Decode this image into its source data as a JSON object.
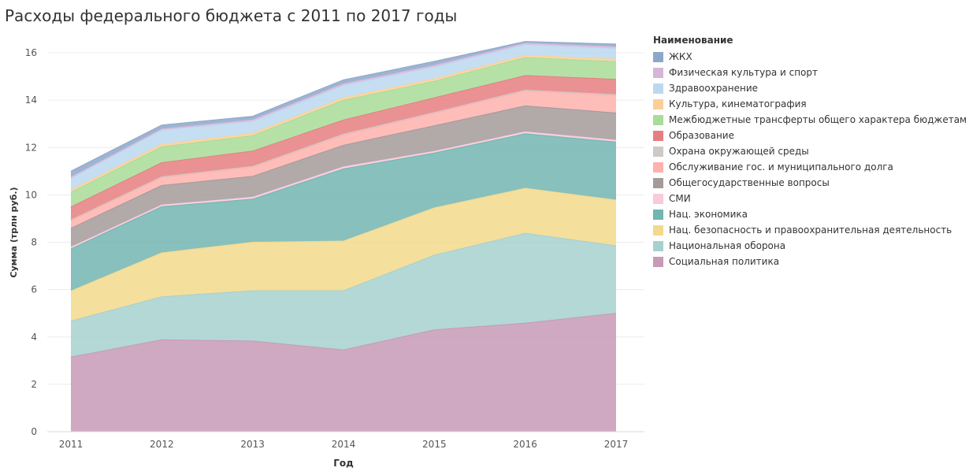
{
  "title": "Расходы федерального бюджета с 2011 по 2017 годы",
  "legend_title": "Наименование",
  "chart_data": {
    "type": "area",
    "stacked": true,
    "x": [
      "2011",
      "2012",
      "2013",
      "2014",
      "2015",
      "2016",
      "2017"
    ],
    "xlabel": "Год",
    "ylabel": "Сумма (трлн руб.)",
    "ylim": [
      0,
      16.5
    ],
    "yticks": [
      0,
      2,
      4,
      6,
      8,
      10,
      12,
      14,
      16
    ],
    "grid": true,
    "legend_position": "right",
    "series": [
      {
        "name": "Социальная политика",
        "color": "#c79ab6",
        "values": [
          3.15,
          3.88,
          3.83,
          3.45,
          4.3,
          4.58,
          5.0
        ]
      },
      {
        "name": "Национальная оборона",
        "color": "#a6d1cf",
        "values": [
          1.52,
          1.82,
          2.12,
          2.5,
          3.15,
          3.8,
          2.85
        ]
      },
      {
        "name": "Нац. безопасность и правоохранительная деятельность",
        "color": "#f2d98c",
        "values": [
          1.27,
          1.85,
          2.05,
          2.1,
          2.0,
          1.9,
          1.93
        ]
      },
      {
        "name": "Нац. экономика",
        "color": "#72b5b1",
        "values": [
          1.78,
          1.95,
          1.82,
          3.05,
          2.32,
          2.3,
          2.45
        ]
      },
      {
        "name": "СМИ",
        "color": "#f9c9dc",
        "values": [
          0.07,
          0.07,
          0.08,
          0.08,
          0.07,
          0.08,
          0.08
        ]
      },
      {
        "name": "Общегосударственные вопросы",
        "color": "#a49a9a",
        "values": [
          0.8,
          0.83,
          0.88,
          0.92,
          1.08,
          1.1,
          1.15
        ]
      },
      {
        "name": "Обслуживание гос. и муниципального долга",
        "color": "#ffb1ae",
        "values": [
          0.32,
          0.33,
          0.38,
          0.42,
          0.52,
          0.62,
          0.73
        ]
      },
      {
        "name": "Охрана окружающей среды",
        "color": "#cfc9c5",
        "values": [
          0.03,
          0.03,
          0.04,
          0.04,
          0.04,
          0.04,
          0.04
        ]
      },
      {
        "name": "Образование",
        "color": "#e67f80",
        "values": [
          0.55,
          0.6,
          0.65,
          0.6,
          0.62,
          0.62,
          0.65
        ]
      },
      {
        "name": "Межбюджетные трансферты общего характера бюджетам БС РФ",
        "color": "#a8dc98",
        "values": [
          0.62,
          0.67,
          0.65,
          0.84,
          0.7,
          0.76,
          0.75
        ]
      },
      {
        "name": "Культура, кинематография",
        "color": "#fbd096",
        "values": [
          0.09,
          0.1,
          0.1,
          0.1,
          0.1,
          0.09,
          0.09
        ]
      },
      {
        "name": "Здравоохранение",
        "color": "#bcd8ef",
        "values": [
          0.5,
          0.6,
          0.5,
          0.52,
          0.5,
          0.45,
          0.45
        ]
      },
      {
        "name": "Физическая культура и спорт",
        "color": "#d5b6d9",
        "values": [
          0.05,
          0.05,
          0.07,
          0.07,
          0.07,
          0.07,
          0.08
        ]
      },
      {
        "name": "ЖКХ",
        "color": "#8ca7ca",
        "values": [
          0.25,
          0.17,
          0.15,
          0.17,
          0.17,
          0.07,
          0.12
        ]
      }
    ]
  }
}
